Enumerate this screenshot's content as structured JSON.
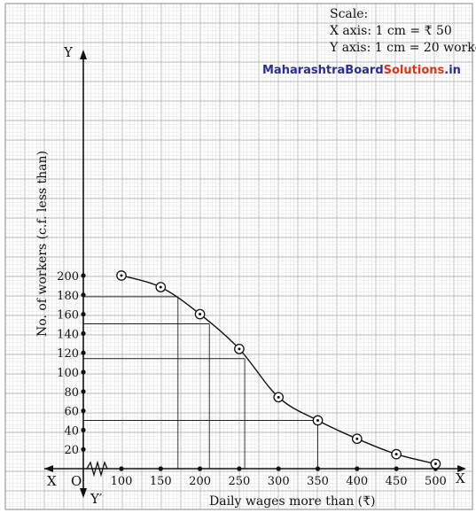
{
  "watermark": {
    "part1": "MaharashtraBoard",
    "part2": "Solutions",
    "part3": ".in"
  },
  "scale": {
    "heading": "Scale:",
    "x_line": "X axis: 1 cm = ₹ 50",
    "y_line": "Y axis: 1 cm = 20 workers"
  },
  "axes": {
    "y_top_letter": "Y",
    "y_bottom_letter": "Y′",
    "x_left_letter": "X",
    "x_right_letter": "X",
    "origin_letter": "O"
  },
  "chart_data": {
    "type": "line",
    "xlabel": "Daily wages more than (₹)",
    "ylabel": "No. of workers (c.f. less than)",
    "x_ticks": [
      100,
      150,
      200,
      250,
      300,
      350,
      400,
      450,
      500
    ],
    "y_ticks": [
      20,
      40,
      60,
      80,
      100,
      120,
      140,
      160,
      180,
      200
    ],
    "xlim": [
      50,
      525
    ],
    "ylim": [
      0,
      215
    ],
    "grid": true,
    "axis_break": "x-axis between 0 and 100",
    "series": [
      {
        "x": [
          100,
          150,
          200,
          250,
          300,
          350,
          400,
          450,
          500
        ],
        "y": [
          200,
          188,
          160,
          124,
          74,
          50,
          31,
          15,
          5
        ],
        "marker": "circle-dot",
        "curve": "smooth"
      }
    ],
    "reference_lines": [
      {
        "y": 178,
        "x": 172
      },
      {
        "y": 150,
        "x": 212
      },
      {
        "y": 114,
        "x": 257
      },
      {
        "y": 50,
        "x": 350
      }
    ]
  }
}
